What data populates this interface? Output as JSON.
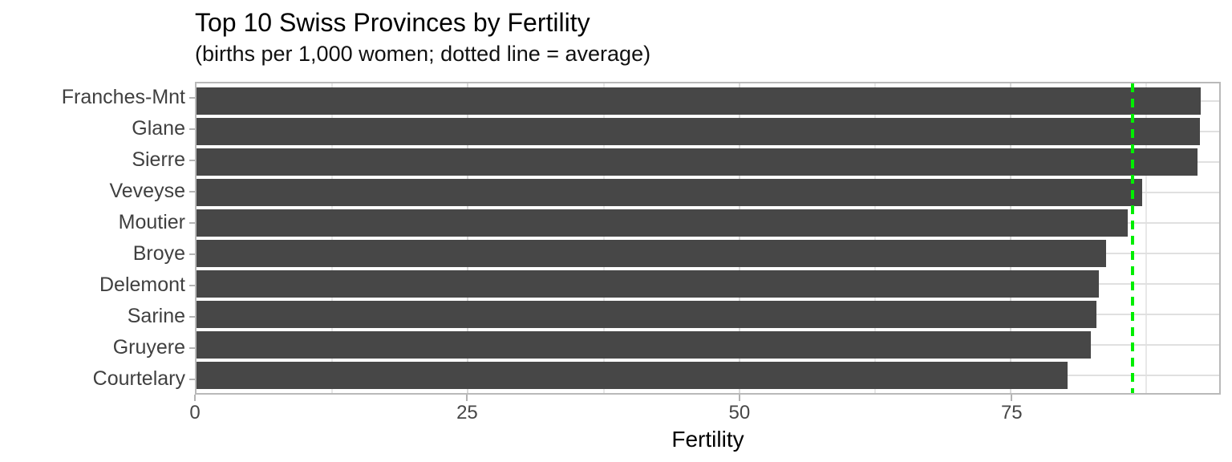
{
  "title": "Top 10 Swiss Provinces by Fertility",
  "subtitle": "(births per 1,000 women; dotted line = average)",
  "chart_data": {
    "type": "bar",
    "orientation": "horizontal",
    "title": "Top 10 Swiss Provinces by Fertility",
    "subtitle": "(births per 1,000 women; dotted line = average)",
    "categories": [
      "Franches-Mnt",
      "Glane",
      "Sierre",
      "Veveyse",
      "Moutier",
      "Broye",
      "Delemont",
      "Sarine",
      "Gruyere",
      "Courtelary"
    ],
    "values": [
      92.5,
      92.4,
      92.2,
      87.1,
      85.8,
      83.8,
      83.1,
      82.9,
      82.4,
      80.2
    ],
    "average_line_value": 86.2,
    "xlabel": "Fertility",
    "ylabel": "",
    "x_major_ticks": [
      0,
      25,
      50,
      75
    ],
    "x_minor_gridlines": [
      12.5,
      37.5,
      62.5,
      87.5
    ],
    "xlim": [
      0,
      94.2
    ],
    "grid": true,
    "legend_position": "none",
    "colors": {
      "bar_fill": "#474747",
      "average_line": "#00ee00",
      "gridline_major": "#d9d9d9",
      "gridline_minor": "#e8e8e8",
      "panel_border": "#b9b9b9",
      "axis_text": "#404040"
    }
  }
}
